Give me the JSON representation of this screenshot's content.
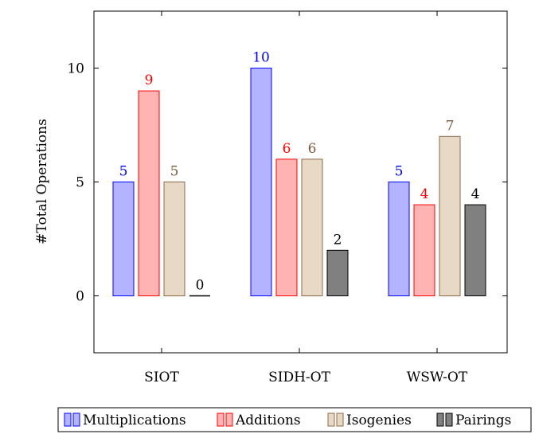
{
  "chart_data": {
    "type": "bar",
    "title": "",
    "xlabel": "",
    "ylabel": "#Total  Operations",
    "categories": [
      "SIOT",
      "SIDH-OT",
      "WSW-OT"
    ],
    "ylim": [
      -2.5,
      12.5
    ],
    "yticks": [
      0,
      5,
      10
    ],
    "grid": false,
    "legend_position": "bottom",
    "series": [
      {
        "name": "Multiplications",
        "values": [
          5,
          10,
          5
        ],
        "fill": "#b3b3ff",
        "stroke": "#0000ff",
        "label_color": "#0000ff"
      },
      {
        "name": "Additions",
        "values": [
          9,
          6,
          4
        ],
        "fill": "#ffb3b3",
        "stroke": "#ff0000",
        "label_color": "#ff0000"
      },
      {
        "name": "Isogenies",
        "values": [
          5,
          6,
          7
        ],
        "fill": "#e8d8c6",
        "stroke": "#8b6b47",
        "label_color": "#7a5a3a"
      },
      {
        "name": "Pairings",
        "values": [
          0,
          2,
          4
        ],
        "fill": "#808080",
        "stroke": "#000000",
        "label_color": "#000000"
      }
    ]
  }
}
